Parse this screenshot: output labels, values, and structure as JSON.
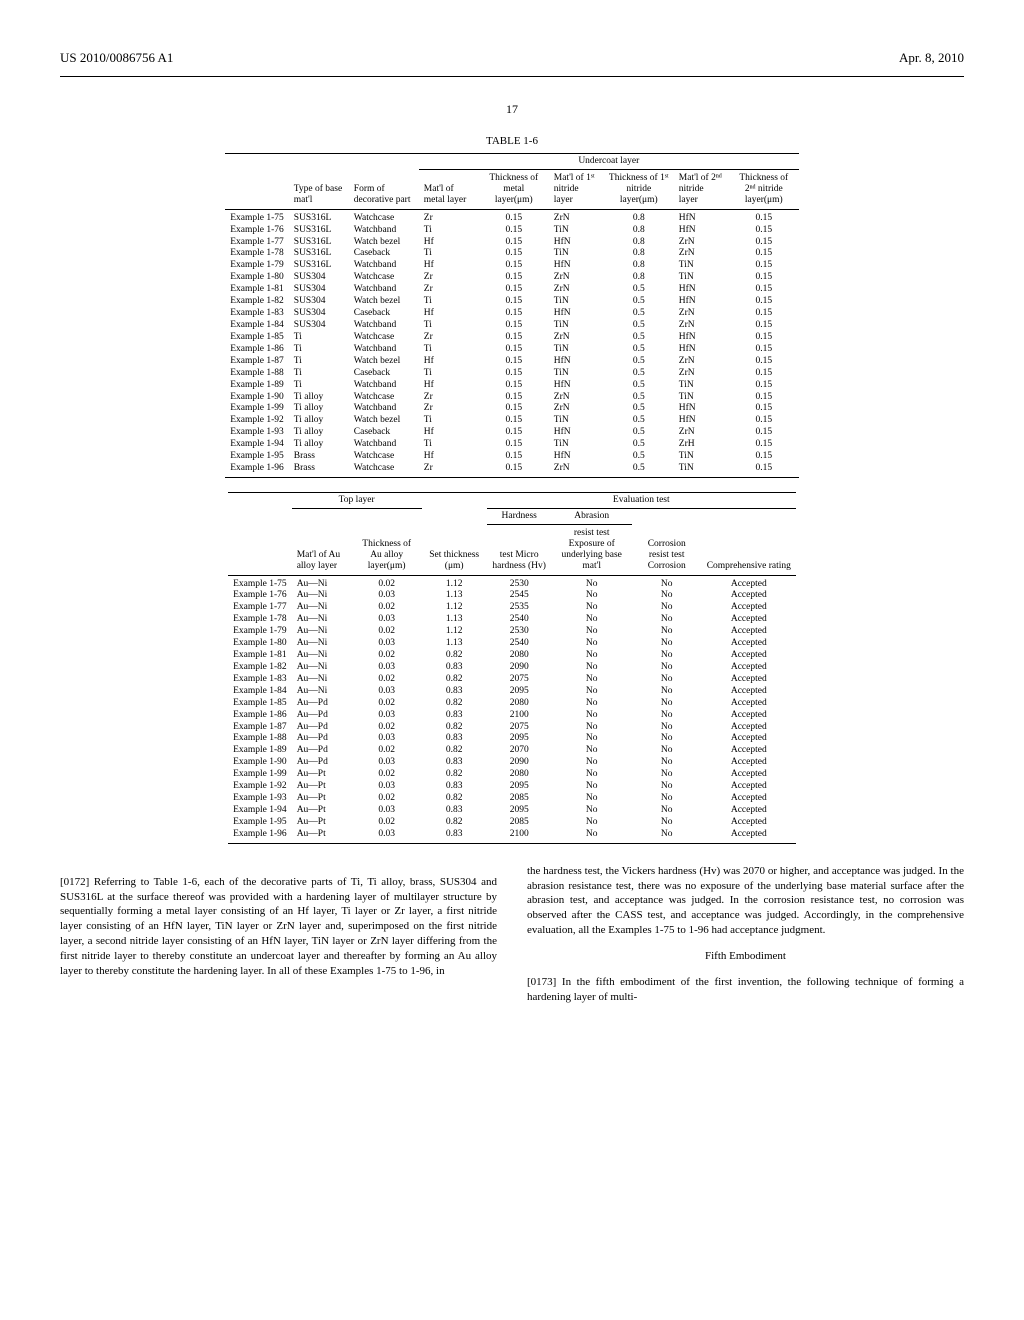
{
  "header": {
    "pubnum": "US 2010/0086756 A1",
    "date": "Apr. 8, 2010"
  },
  "page_number": "17",
  "table1": {
    "title": "TABLE 1-6",
    "group": "Undercoat layer",
    "cols": [
      "",
      "Type of base mat'l",
      "Form of decorative part",
      "Mat'l of metal layer",
      "Thickness of metal layer(μm)",
      "Mat'l of 1ˢᵗ nitride layer",
      "Thickness of 1ˢᵗ nitride layer(μm)",
      "Mat'l of 2ⁿᵈ nitride layer",
      "Thickness of 2ⁿᵈ nitride layer(μm)"
    ],
    "rows": [
      [
        "Example 1-75",
        "SUS316L",
        "Watchcase",
        "Zr",
        "0.15",
        "ZrN",
        "0.8",
        "HfN",
        "0.15"
      ],
      [
        "Example 1-76",
        "SUS316L",
        "Watchband",
        "Ti",
        "0.15",
        "TiN",
        "0.8",
        "HfN",
        "0.15"
      ],
      [
        "Example 1-77",
        "SUS316L",
        "Watch bezel",
        "Hf",
        "0.15",
        "HfN",
        "0.8",
        "ZrN",
        "0.15"
      ],
      [
        "Example 1-78",
        "SUS316L",
        "Caseback",
        "Ti",
        "0.15",
        "TiN",
        "0.8",
        "ZrN",
        "0.15"
      ],
      [
        "Example 1-79",
        "SUS316L",
        "Watchband",
        "Hf",
        "0.15",
        "HfN",
        "0.8",
        "TiN",
        "0.15"
      ],
      [
        "Example 1-80",
        "SUS304",
        "Watchcase",
        "Zr",
        "0.15",
        "ZrN",
        "0.8",
        "TiN",
        "0.15"
      ],
      [
        "Example 1-81",
        "SUS304",
        "Watchband",
        "Zr",
        "0.15",
        "ZrN",
        "0.5",
        "HfN",
        "0.15"
      ],
      [
        "Example 1-82",
        "SUS304",
        "Watch bezel",
        "Ti",
        "0.15",
        "TiN",
        "0.5",
        "HfN",
        "0.15"
      ],
      [
        "Example 1-83",
        "SUS304",
        "Caseback",
        "Hf",
        "0.15",
        "HfN",
        "0.5",
        "ZrN",
        "0.15"
      ],
      [
        "Example 1-84",
        "SUS304",
        "Watchband",
        "Ti",
        "0.15",
        "TiN",
        "0.5",
        "ZrN",
        "0.15"
      ],
      [
        "Example 1-85",
        "Ti",
        "Watchcase",
        "Zr",
        "0.15",
        "ZrN",
        "0.5",
        "HfN",
        "0.15"
      ],
      [
        "Example 1-86",
        "Ti",
        "Watchband",
        "Ti",
        "0.15",
        "TiN",
        "0.5",
        "HfN",
        "0.15"
      ],
      [
        "Example 1-87",
        "Ti",
        "Watch bezel",
        "Hf",
        "0.15",
        "HfN",
        "0.5",
        "ZrN",
        "0.15"
      ],
      [
        "Example 1-88",
        "Ti",
        "Caseback",
        "Ti",
        "0.15",
        "TiN",
        "0.5",
        "ZrN",
        "0.15"
      ],
      [
        "Example 1-89",
        "Ti",
        "Watchband",
        "Hf",
        "0.15",
        "HfN",
        "0.5",
        "TiN",
        "0.15"
      ],
      [
        "Example 1-90",
        "Ti alloy",
        "Watchcase",
        "Zr",
        "0.15",
        "ZrN",
        "0.5",
        "TiN",
        "0.15"
      ],
      [
        "Example 1-99",
        "Ti alloy",
        "Watchband",
        "Zr",
        "0.15",
        "ZrN",
        "0.5",
        "HfN",
        "0.15"
      ],
      [
        "Example 1-92",
        "Ti alloy",
        "Watch bezel",
        "Ti",
        "0.15",
        "TiN",
        "0.5",
        "HfN",
        "0.15"
      ],
      [
        "Example 1-93",
        "Ti alloy",
        "Caseback",
        "Hf",
        "0.15",
        "HfN",
        "0.5",
        "ZrN",
        "0.15"
      ],
      [
        "Example 1-94",
        "Ti alloy",
        "Watchband",
        "Ti",
        "0.15",
        "TiN",
        "0.5",
        "ZrH",
        "0.15"
      ],
      [
        "Example 1-95",
        "Brass",
        "Watchcase",
        "Hf",
        "0.15",
        "HfN",
        "0.5",
        "TiN",
        "0.15"
      ],
      [
        "Example 1-96",
        "Brass",
        "Watchcase",
        "Zr",
        "0.15",
        "ZrN",
        "0.5",
        "TiN",
        "0.15"
      ]
    ]
  },
  "table2": {
    "group1": "Top layer",
    "group2": "Evaluation test",
    "sub1": "Hardness",
    "sub2": "Abrasion",
    "cols": [
      "",
      "Mat'l of Au alloy layer",
      "Thickness of Au alloy layer(μm)",
      "Set thickness (μm)",
      "test Micro hardness (Hv)",
      "resist test Exposure of underlying base mat'l",
      "Corrosion resist test Corrosion",
      "Comprehensive rating"
    ],
    "rows": [
      [
        "Example 1-75",
        "Au—Ni",
        "0.02",
        "1.12",
        "2530",
        "No",
        "No",
        "Accepted"
      ],
      [
        "Example 1-76",
        "Au—Ni",
        "0.03",
        "1.13",
        "2545",
        "No",
        "No",
        "Accepted"
      ],
      [
        "Example 1-77",
        "Au—Ni",
        "0.02",
        "1.12",
        "2535",
        "No",
        "No",
        "Accepted"
      ],
      [
        "Example 1-78",
        "Au—Ni",
        "0.03",
        "1.13",
        "2540",
        "No",
        "No",
        "Accepted"
      ],
      [
        "Example 1-79",
        "Au—Ni",
        "0.02",
        "1.12",
        "2530",
        "No",
        "No",
        "Accepted"
      ],
      [
        "Example 1-80",
        "Au—Ni",
        "0.03",
        "1.13",
        "2540",
        "No",
        "No",
        "Accepted"
      ],
      [
        "Example 1-81",
        "Au—Ni",
        "0.02",
        "0.82",
        "2080",
        "No",
        "No",
        "Accepted"
      ],
      [
        "Example 1-82",
        "Au—Ni",
        "0.03",
        "0.83",
        "2090",
        "No",
        "No",
        "Accepted"
      ],
      [
        "Example 1-83",
        "Au—Ni",
        "0.02",
        "0.82",
        "2075",
        "No",
        "No",
        "Accepted"
      ],
      [
        "Example 1-84",
        "Au—Ni",
        "0.03",
        "0.83",
        "2095",
        "No",
        "No",
        "Accepted"
      ],
      [
        "Example 1-85",
        "Au—Pd",
        "0.02",
        "0.82",
        "2080",
        "No",
        "No",
        "Accepted"
      ],
      [
        "Example 1-86",
        "Au—Pd",
        "0.03",
        "0.83",
        "2100",
        "No",
        "No",
        "Accepted"
      ],
      [
        "Example 1-87",
        "Au—Pd",
        "0.02",
        "0.82",
        "2075",
        "No",
        "No",
        "Accepted"
      ],
      [
        "Example 1-88",
        "Au—Pd",
        "0.03",
        "0.83",
        "2095",
        "No",
        "No",
        "Accepted"
      ],
      [
        "Example 1-89",
        "Au—Pd",
        "0.02",
        "0.82",
        "2070",
        "No",
        "No",
        "Accepted"
      ],
      [
        "Example 1-90",
        "Au—Pd",
        "0.03",
        "0.83",
        "2090",
        "No",
        "No",
        "Accepted"
      ],
      [
        "Example 1-99",
        "Au—Pt",
        "0.02",
        "0.82",
        "2080",
        "No",
        "No",
        "Accepted"
      ],
      [
        "Example 1-92",
        "Au—Pt",
        "0.03",
        "0.83",
        "2095",
        "No",
        "No",
        "Accepted"
      ],
      [
        "Example 1-93",
        "Au—Pt",
        "0.02",
        "0.82",
        "2085",
        "No",
        "No",
        "Accepted"
      ],
      [
        "Example 1-94",
        "Au—Pt",
        "0.03",
        "0.83",
        "2095",
        "No",
        "No",
        "Accepted"
      ],
      [
        "Example 1-95",
        "Au—Pt",
        "0.02",
        "0.82",
        "2085",
        "No",
        "No",
        "Accepted"
      ],
      [
        "Example 1-96",
        "Au—Pt",
        "0.03",
        "0.83",
        "2100",
        "No",
        "No",
        "Accepted"
      ]
    ]
  },
  "para": {
    "n0172": "[0172]",
    "p0172": " Referring to Table 1-6, each of the decorative parts of Ti, Ti alloy, brass, SUS304 and SUS316L at the surface thereof was provided with a hardening layer of multilayer structure by sequentially forming a metal layer consisting of an Hf layer, Ti layer or Zr layer, a first nitride layer consisting of an HfN layer, TiN layer or ZrN layer and, superimposed on the first nitride layer, a second nitride layer consisting of an HfN layer, TiN layer or ZrN layer differing from the first nitride layer to thereby constitute an undercoat layer and thereafter by forming an Au alloy layer to thereby constitute the hardening layer. In all of these Examples 1-75 to 1-96, in",
    "p0172b": "the hardness test, the Vickers hardness (Hv) was 2070 or higher, and acceptance was judged. In the abrasion resistance test, there was no exposure of the underlying base material surface after the abrasion test, and acceptance was judged. In the corrosion resistance test, no corrosion was observed after the CASS test, and acceptance was judged. Accordingly, in the comprehensive evaluation, all the Examples 1-75 to 1-96 had acceptance judgment.",
    "fifth": "Fifth Embodiment",
    "n0173": "[0173]",
    "p0173": " In the fifth embodiment of the first invention, the following technique of forming a hardening layer of multi-"
  }
}
